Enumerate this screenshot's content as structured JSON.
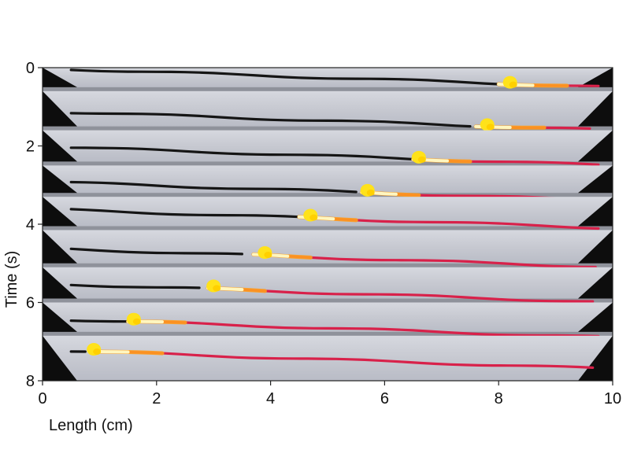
{
  "chart_data": {
    "type": "image-plot",
    "xlabel": "Length (cm)",
    "ylabel": "Time (s)",
    "xlim": [
      0,
      10
    ],
    "ylim": [
      0,
      8
    ],
    "y_inverted": true,
    "x_ticks": [
      "0",
      "2",
      "4",
      "6",
      "8",
      "10"
    ],
    "y_ticks": [
      "0",
      "2",
      "4",
      "6",
      "8"
    ],
    "grid": false,
    "legend": "none",
    "series": [
      {
        "t": 0.0,
        "front_cm": 8.0,
        "head_cm": 8.2
      },
      {
        "t": 1.1,
        "front_cm": 7.6,
        "head_cm": 7.8
      },
      {
        "t": 2.0,
        "front_cm": 6.5,
        "head_cm": 6.6
      },
      {
        "t": 2.9,
        "front_cm": 5.6,
        "head_cm": 5.7
      },
      {
        "t": 3.6,
        "front_cm": 4.5,
        "head_cm": 4.7
      },
      {
        "t": 4.6,
        "front_cm": 3.7,
        "head_cm": 3.9
      },
      {
        "t": 5.5,
        "front_cm": 2.9,
        "head_cm": 3.0
      },
      {
        "t": 6.4,
        "front_cm": 1.5,
        "head_cm": 1.6
      },
      {
        "t": 7.2,
        "front_cm": 0.9,
        "head_cm": 0.9
      }
    ],
    "colors": {
      "strip": "#c9cbd3",
      "fiber": "#151515",
      "burned": "#d8214a",
      "flame": "#ffe21a",
      "flame_hot": "#fff6c0",
      "clamp": "#0d0d0d"
    }
  }
}
